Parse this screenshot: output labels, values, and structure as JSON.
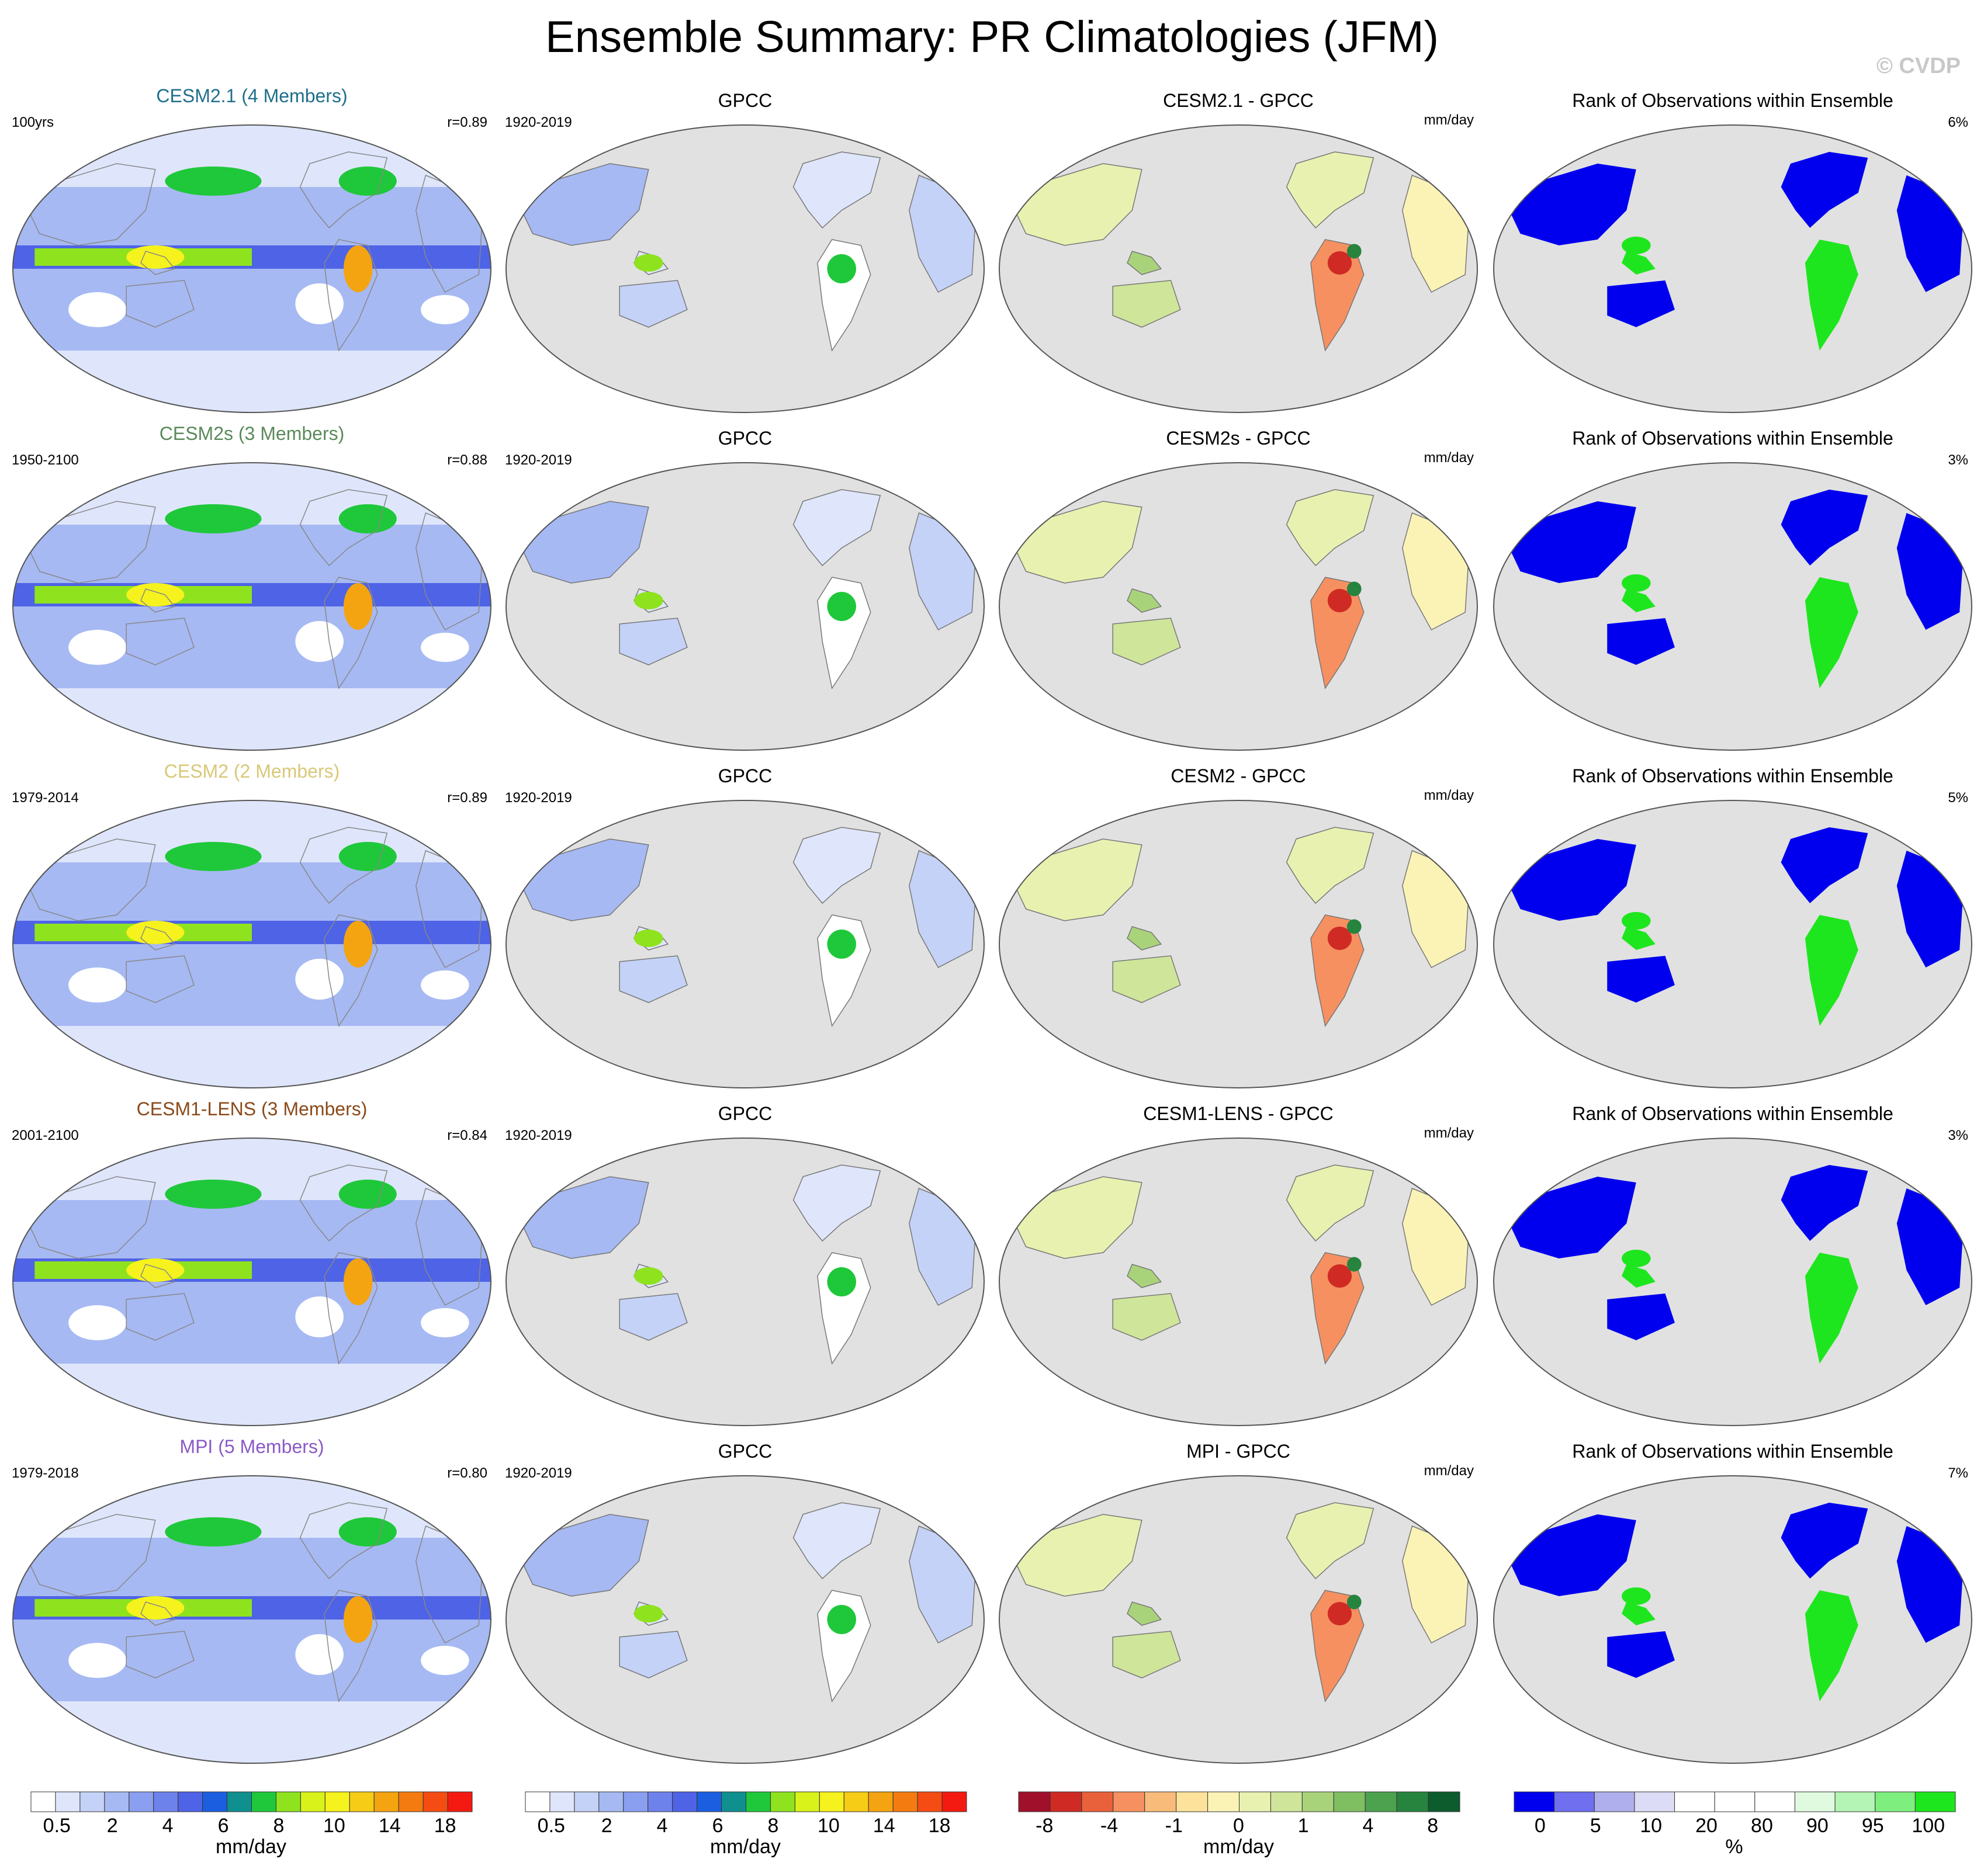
{
  "title": "Ensemble Summary: PR Climatologies (JFM)",
  "watermark": "© CVDP",
  "rows": [
    {
      "model": {
        "title": "CESM2.1 (4 Members)",
        "color": "#1f6f8b",
        "years": "100yrs",
        "r": "r=0.89"
      },
      "obs": {
        "title": "GPCC",
        "years": "1920-2019"
      },
      "diff": {
        "title": "CESM2.1 - GPCC",
        "units": "mm/day"
      },
      "rank": {
        "title": "Rank of Observations within Ensemble",
        "pct": "6%"
      }
    },
    {
      "model": {
        "title": "CESM2s (3 Members)",
        "color": "#5a8a5a",
        "years": "1950-2100",
        "r": "r=0.88"
      },
      "obs": {
        "title": "GPCC",
        "years": "1920-2019"
      },
      "diff": {
        "title": "CESM2s - GPCC",
        "units": "mm/day"
      },
      "rank": {
        "title": "Rank of Observations within Ensemble",
        "pct": "3%"
      }
    },
    {
      "model": {
        "title": "CESM2 (2 Members)",
        "color": "#d8c878",
        "years": "1979-2014",
        "r": "r=0.89"
      },
      "obs": {
        "title": "GPCC",
        "years": "1920-2019"
      },
      "diff": {
        "title": "CESM2 - GPCC",
        "units": "mm/day"
      },
      "rank": {
        "title": "Rank of Observations within Ensemble",
        "pct": "5%"
      }
    },
    {
      "model": {
        "title": "CESM1-LENS (3 Members)",
        "color": "#8a4a1a",
        "years": "2001-2100",
        "r": "r=0.84"
      },
      "obs": {
        "title": "GPCC",
        "years": "1920-2019"
      },
      "diff": {
        "title": "CESM1-LENS - GPCC",
        "units": "mm/day"
      },
      "rank": {
        "title": "Rank of Observations within Ensemble",
        "pct": "3%"
      }
    },
    {
      "model": {
        "title": "MPI (5 Members)",
        "color": "#8a5ac8",
        "years": "1979-2018",
        "r": "r=0.80"
      },
      "obs": {
        "title": "GPCC",
        "years": "1920-2019"
      },
      "diff": {
        "title": "MPI - GPCC",
        "units": "mm/day"
      },
      "rank": {
        "title": "Rank of Observations within Ensemble",
        "pct": "7%"
      }
    }
  ],
  "colorbars": [
    {
      "units": "mm/day",
      "ticks": [
        "0.5",
        "2",
        "4",
        "6",
        "8",
        "10",
        "14",
        "18"
      ],
      "colors": [
        "#ffffff",
        "#dfe6fb",
        "#c4d2f7",
        "#a6b9f3",
        "#8b9ff0",
        "#6e82ec",
        "#4f63e6",
        "#1b5fe0",
        "#108f8f",
        "#1fc83a",
        "#8ee31e",
        "#d8f21a",
        "#f6f21e",
        "#f6cc16",
        "#f4a410",
        "#f47b10",
        "#f44c12",
        "#f41a12"
      ]
    },
    {
      "units": "mm/day",
      "ticks": [
        "0.5",
        "2",
        "4",
        "6",
        "8",
        "10",
        "14",
        "18"
      ],
      "colors": [
        "#ffffff",
        "#dfe6fb",
        "#c4d2f7",
        "#a6b9f3",
        "#8b9ff0",
        "#6e82ec",
        "#4f63e6",
        "#1b5fe0",
        "#108f8f",
        "#1fc83a",
        "#8ee31e",
        "#d8f21a",
        "#f6f21e",
        "#f6cc16",
        "#f4a410",
        "#f47b10",
        "#f44c12",
        "#f41a12"
      ]
    },
    {
      "units": "mm/day",
      "ticks": [
        "-8",
        "-4",
        "-1",
        "0",
        "1",
        "4",
        "8"
      ],
      "colors": [
        "#a0102a",
        "#cf2b24",
        "#e8613a",
        "#f69060",
        "#f8bb7a",
        "#fce29a",
        "#fbf3b6",
        "#e8f1b0",
        "#cfe59a",
        "#a9d37a",
        "#7fbf62",
        "#4ca24e",
        "#27843e",
        "#0d5c2e"
      ]
    },
    {
      "units": "%",
      "ticks": [
        "0",
        "5",
        "10",
        "20",
        "80",
        "90",
        "95",
        "100"
      ],
      "colors": [
        "#0000ee",
        "#6f6ff0",
        "#afafee",
        "#dcdcf6",
        "#ffffff",
        "#ffffff",
        "#ffffff",
        "#e0fae0",
        "#b4f4b4",
        "#7eee7e",
        "#1ee61e"
      ]
    }
  ],
  "chart_data": [
    {
      "type": "heatmap",
      "title": "CESM2.1 (4 Members)",
      "period": "100yrs",
      "pattern_correlation": 0.89,
      "units": "mm/day"
    },
    {
      "type": "heatmap",
      "title": "GPCC",
      "period": "1920-2019",
      "units": "mm/day"
    },
    {
      "type": "heatmap",
      "title": "CESM2.1 - GPCC",
      "units": "mm/day"
    },
    {
      "type": "heatmap",
      "title": "Rank of Observations within Ensemble",
      "pct": 6,
      "units": "%"
    },
    {
      "type": "heatmap",
      "title": "CESM2s (3 Members)",
      "period": "1950-2100",
      "pattern_correlation": 0.88,
      "units": "mm/day"
    },
    {
      "type": "heatmap",
      "title": "GPCC",
      "period": "1920-2019",
      "units": "mm/day"
    },
    {
      "type": "heatmap",
      "title": "CESM2s - GPCC",
      "units": "mm/day"
    },
    {
      "type": "heatmap",
      "title": "Rank of Observations within Ensemble",
      "pct": 3,
      "units": "%"
    },
    {
      "type": "heatmap",
      "title": "CESM2 (2 Members)",
      "period": "1979-2014",
      "pattern_correlation": 0.89,
      "units": "mm/day"
    },
    {
      "type": "heatmap",
      "title": "GPCC",
      "period": "1920-2019",
      "units": "mm/day"
    },
    {
      "type": "heatmap",
      "title": "CESM2 - GPCC",
      "units": "mm/day"
    },
    {
      "type": "heatmap",
      "title": "Rank of Observations within Ensemble",
      "pct": 5,
      "units": "%"
    },
    {
      "type": "heatmap",
      "title": "CESM1-LENS (3 Members)",
      "period": "2001-2100",
      "pattern_correlation": 0.84,
      "units": "mm/day"
    },
    {
      "type": "heatmap",
      "title": "GPCC",
      "period": "1920-2019",
      "units": "mm/day"
    },
    {
      "type": "heatmap",
      "title": "CESM1-LENS - GPCC",
      "units": "mm/day"
    },
    {
      "type": "heatmap",
      "title": "Rank of Observations within Ensemble",
      "pct": 3,
      "units": "%"
    },
    {
      "type": "heatmap",
      "title": "MPI (5 Members)",
      "period": "1979-2018",
      "pattern_correlation": 0.8,
      "units": "mm/day"
    },
    {
      "type": "heatmap",
      "title": "GPCC",
      "period": "1920-2019",
      "units": "mm/day"
    },
    {
      "type": "heatmap",
      "title": "MPI - GPCC",
      "units": "mm/day"
    },
    {
      "type": "heatmap",
      "title": "Rank of Observations within Ensemble",
      "pct": 7,
      "units": "%"
    }
  ]
}
